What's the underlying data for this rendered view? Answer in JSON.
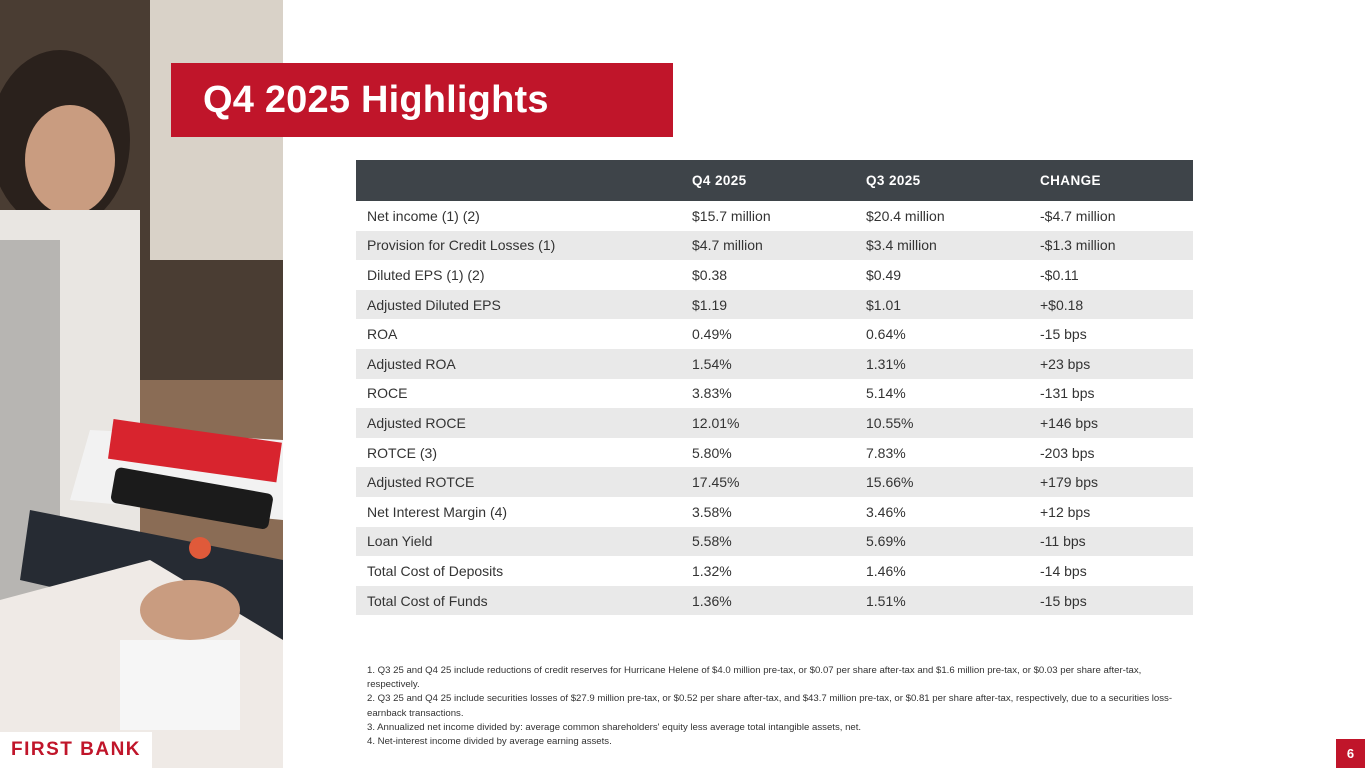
{
  "title": "Q4 2025 Highlights",
  "brand": {
    "logo_text": "FIRST BANK",
    "accent": "#c0152a",
    "header_bg": "#3e4449",
    "stripe_bg": "#e9e9e9"
  },
  "table": {
    "headers": [
      "",
      "Q4 2025",
      "Q3 2025",
      "CHANGE"
    ],
    "rows": [
      [
        "Net income (1) (2)",
        "$15.7 million",
        "$20.4 million",
        "-$4.7 million"
      ],
      [
        "Provision for Credit Losses (1)",
        "$4.7 million",
        "$3.4 million",
        "-$1.3 million"
      ],
      [
        "Diluted EPS (1) (2)",
        "$0.38",
        "$0.49",
        "-$0.11"
      ],
      [
        "Adjusted Diluted EPS",
        "$1.19",
        "$1.01",
        "+$0.18"
      ],
      [
        "ROA",
        "0.49%",
        "0.64%",
        "-15 bps"
      ],
      [
        "Adjusted ROA",
        "1.54%",
        "1.31%",
        "+23 bps"
      ],
      [
        "ROCE",
        "3.83%",
        "5.14%",
        "-131 bps"
      ],
      [
        "Adjusted ROCE",
        "12.01%",
        "10.55%",
        "+146 bps"
      ],
      [
        "ROTCE (3)",
        "5.80%",
        "7.83%",
        "-203 bps"
      ],
      [
        "Adjusted ROTCE",
        "17.45%",
        "15.66%",
        "+179 bps"
      ],
      [
        "Net Interest Margin (4)",
        "3.58%",
        "3.46%",
        "+12 bps"
      ],
      [
        "Loan Yield",
        "5.58%",
        "5.69%",
        "-11 bps"
      ],
      [
        "Total Cost of Deposits",
        "1.32%",
        "1.46%",
        "-14 bps"
      ],
      [
        "Total Cost of Funds",
        "1.36%",
        "1.51%",
        "-15 bps"
      ]
    ]
  },
  "footnotes": [
    "1.   Q3 25 and Q4 25 include reductions of credit reserves for Hurricane Helene of $4.0 million pre-tax, or $0.07 per share after-tax and $1.6 million pre-tax, or $0.03 per share after-tax, respectively.",
    "2.   Q3 25 and Q4 25 include securities losses of $27.9 million pre-tax, or $0.52 per share after-tax, and $43.7 million pre-tax, or $0.81 per share after-tax, respectively, due to a securities loss-earnback transactions.",
    "3.   Annualized net income divided by: average common shareholders' equity less average total intangible assets, net.",
    "4.   Net-interest income divided by average earning assets."
  ],
  "page_number": "6"
}
